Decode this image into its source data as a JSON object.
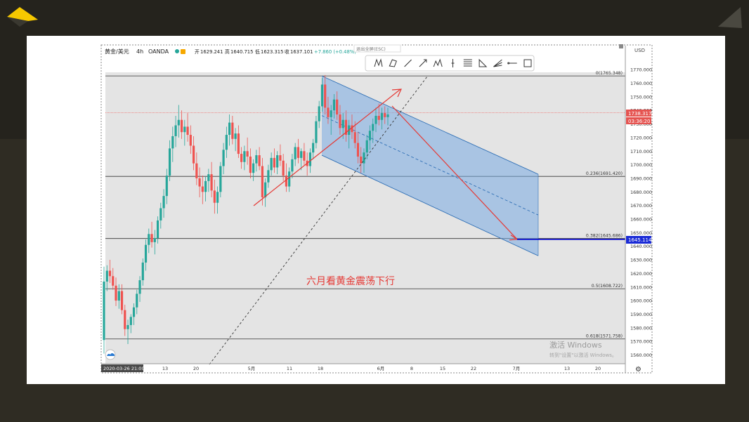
{
  "header": {
    "symbol": "黄金/美元",
    "interval": "4h",
    "broker": "OANDA",
    "ohlc": {
      "open_label": "开",
      "open": "1629.241",
      "high_label": "高",
      "high": "1640.715",
      "low_label": "低",
      "low": "1623.315",
      "close_label": "收",
      "close": "1637.101",
      "change": "+7.860 (+0.48%)"
    },
    "exit_fullscreen": "退出全屏(ESC)"
  },
  "toolbar": {
    "icons": [
      "xabcd-pattern-icon",
      "cypher-pattern-icon",
      "trend-line-icon",
      "arrow-icon",
      "elliott-wave-icon",
      "vertical-line-icon",
      "fib-retracement-icon",
      "triangle-icon",
      "fib-fan-icon",
      "horizontal-ray-icon",
      "rectangle-icon"
    ]
  },
  "chart_data": {
    "type": "candlestick",
    "currency": "USD",
    "y_ticks": [
      1560,
      1570,
      1580,
      1590,
      1600,
      1610,
      1620,
      1630,
      1640,
      1650,
      1660,
      1670,
      1680,
      1690,
      1700,
      1710,
      1720,
      1730,
      1740,
      1750,
      1760,
      1770
    ],
    "y_tick_labels": [
      "1560.000",
      "1570.000",
      "1580.000",
      "1590.000",
      "1600.000",
      "1610.000",
      "1620.000",
      "1630.000",
      "1640.000",
      "1650.000",
      "1660.000",
      "1670.000",
      "1680.000",
      "1690.000",
      "1700.000",
      "1710.000",
      "1720.000",
      "1730.000",
      "1740.000",
      "1750.000",
      "1760.000",
      "1770.000"
    ],
    "ylim": [
      1555,
      1774
    ],
    "x_ticks": [
      "13",
      "20",
      "5月",
      "11",
      "18",
      "6月",
      "8",
      "15",
      "22",
      "7月",
      "13",
      "20"
    ],
    "cursor_date_label": "2020-03-26   21:00",
    "current_price": "1738.317",
    "countdown": "03:36:20",
    "target_price": "1645.114",
    "fib_levels": [
      {
        "label": "0(1765.348)",
        "value": 1765.348
      },
      {
        "label": "0.236(1691.420)",
        "value": 1691.42
      },
      {
        "label": "0.382(1645.686)",
        "value": 1645.686
      },
      {
        "label": "0.5(1608.722)",
        "value": 1608.722
      },
      {
        "label": "0.618(1571.758)",
        "value": 1571.758
      }
    ],
    "annotation": "六月看黄金震荡下行",
    "watermark_line1": "激活 Windows",
    "watermark_line2": "转到\"设置\"以激活 Windows。",
    "colors": {
      "up": "#26a69a",
      "down": "#ef5350",
      "channel": "#2f6fb5",
      "arrow": "#e53935",
      "fib": "#333333",
      "target": "#0000cc"
    },
    "candles": [
      [
        1571,
        1625,
        1561,
        1614
      ],
      [
        1614,
        1626,
        1607,
        1622
      ],
      [
        1622,
        1630,
        1613,
        1618
      ],
      [
        1618,
        1624,
        1608,
        1611
      ],
      [
        1611,
        1617,
        1596,
        1600
      ],
      [
        1600,
        1612,
        1594,
        1607
      ],
      [
        1607,
        1612,
        1590,
        1593
      ],
      [
        1593,
        1597,
        1574,
        1579
      ],
      [
        1579,
        1586,
        1568,
        1582
      ],
      [
        1582,
        1590,
        1576,
        1588
      ],
      [
        1588,
        1598,
        1582,
        1595
      ],
      [
        1595,
        1608,
        1590,
        1605
      ],
      [
        1605,
        1618,
        1599,
        1615
      ],
      [
        1615,
        1631,
        1611,
        1628
      ],
      [
        1628,
        1645,
        1622,
        1641
      ],
      [
        1641,
        1653,
        1635,
        1649
      ],
      [
        1649,
        1658,
        1639,
        1643
      ],
      [
        1643,
        1652,
        1634,
        1646
      ],
      [
        1646,
        1662,
        1642,
        1659
      ],
      [
        1659,
        1672,
        1653,
        1668
      ],
      [
        1668,
        1682,
        1661,
        1677
      ],
      [
        1677,
        1697,
        1671,
        1692
      ],
      [
        1692,
        1718,
        1688,
        1712
      ],
      [
        1712,
        1728,
        1702,
        1721
      ],
      [
        1721,
        1736,
        1713,
        1729
      ],
      [
        1729,
        1744,
        1720,
        1733
      ],
      [
        1733,
        1740,
        1719,
        1724
      ],
      [
        1724,
        1733,
        1714,
        1728
      ],
      [
        1728,
        1738,
        1717,
        1722
      ],
      [
        1722,
        1729,
        1708,
        1714
      ],
      [
        1714,
        1721,
        1696,
        1701
      ],
      [
        1701,
        1709,
        1685,
        1690
      ],
      [
        1690,
        1698,
        1676,
        1684
      ],
      [
        1684,
        1692,
        1671,
        1680
      ],
      [
        1680,
        1691,
        1673,
        1688
      ],
      [
        1688,
        1697,
        1680,
        1693
      ],
      [
        1693,
        1702,
        1676,
        1681
      ],
      [
        1681,
        1689,
        1664,
        1672
      ],
      [
        1672,
        1684,
        1664,
        1680
      ],
      [
        1680,
        1702,
        1676,
        1699
      ],
      [
        1699,
        1716,
        1693,
        1711
      ],
      [
        1711,
        1728,
        1705,
        1722
      ],
      [
        1722,
        1737,
        1714,
        1731
      ],
      [
        1731,
        1736,
        1715,
        1719
      ],
      [
        1719,
        1727,
        1710,
        1723
      ],
      [
        1723,
        1729,
        1705,
        1708
      ],
      [
        1708,
        1713,
        1697,
        1702
      ],
      [
        1702,
        1714,
        1696,
        1710
      ],
      [
        1710,
        1720,
        1700,
        1706
      ],
      [
        1706,
        1712,
        1690,
        1694
      ],
      [
        1694,
        1704,
        1688,
        1701
      ],
      [
        1701,
        1711,
        1695,
        1707
      ],
      [
        1707,
        1713,
        1696,
        1699
      ],
      [
        1699,
        1705,
        1670,
        1676
      ],
      [
        1676,
        1690,
        1669,
        1687
      ],
      [
        1687,
        1700,
        1683,
        1696
      ],
      [
        1696,
        1709,
        1692,
        1705
      ],
      [
        1705,
        1712,
        1694,
        1698
      ],
      [
        1698,
        1710,
        1693,
        1707
      ],
      [
        1707,
        1715,
        1699,
        1703
      ],
      [
        1703,
        1708,
        1688,
        1692
      ],
      [
        1692,
        1701,
        1680,
        1684
      ],
      [
        1684,
        1698,
        1680,
        1695
      ],
      [
        1695,
        1708,
        1690,
        1704
      ],
      [
        1704,
        1716,
        1699,
        1713
      ],
      [
        1713,
        1719,
        1701,
        1705
      ],
      [
        1705,
        1712,
        1696,
        1710
      ],
      [
        1710,
        1716,
        1700,
        1703
      ],
      [
        1703,
        1709,
        1692,
        1699
      ],
      [
        1699,
        1712,
        1694,
        1709
      ],
      [
        1709,
        1719,
        1704,
        1716
      ],
      [
        1716,
        1736,
        1712,
        1732
      ],
      [
        1732,
        1747,
        1727,
        1743
      ],
      [
        1743,
        1764,
        1739,
        1759
      ],
      [
        1759,
        1766,
        1737,
        1742
      ],
      [
        1742,
        1750,
        1730,
        1735
      ],
      [
        1735,
        1744,
        1722,
        1740
      ],
      [
        1740,
        1752,
        1734,
        1748
      ],
      [
        1748,
        1754,
        1733,
        1737
      ],
      [
        1737,
        1744,
        1722,
        1727
      ],
      [
        1727,
        1738,
        1719,
        1733
      ],
      [
        1733,
        1740,
        1717,
        1722
      ],
      [
        1722,
        1733,
        1712,
        1729
      ],
      [
        1729,
        1737,
        1719,
        1724
      ],
      [
        1724,
        1732,
        1712,
        1716
      ],
      [
        1716,
        1724,
        1701,
        1706
      ],
      [
        1706,
        1713,
        1694,
        1701
      ],
      [
        1701,
        1712,
        1694,
        1709
      ],
      [
        1709,
        1722,
        1704,
        1718
      ],
      [
        1718,
        1729,
        1711,
        1725
      ],
      [
        1725,
        1734,
        1716,
        1730
      ],
      [
        1730,
        1742,
        1724,
        1736
      ],
      [
        1736,
        1745,
        1729,
        1733
      ],
      [
        1733,
        1742,
        1726,
        1738
      ],
      [
        1738,
        1743,
        1730,
        1735
      ],
      [
        1735,
        1742,
        1729,
        1737
      ]
    ]
  }
}
